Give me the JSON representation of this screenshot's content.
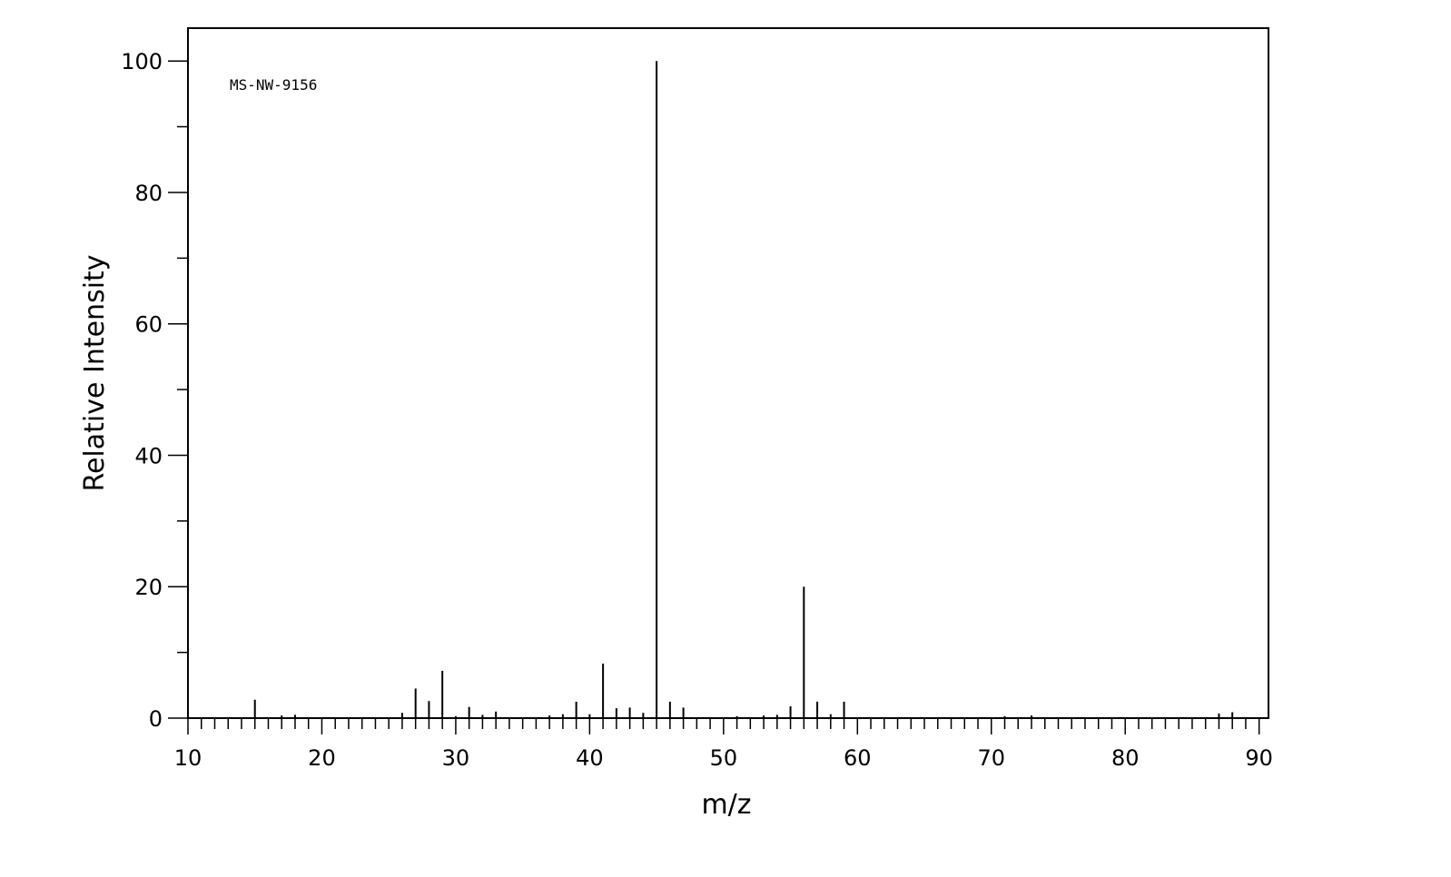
{
  "chart_data": {
    "type": "bar",
    "subtype": "mass-spectrum-stick",
    "title": "",
    "annotation": "MS-NW-9156",
    "xlabel": "m/z",
    "ylabel": "Relative Intensity",
    "xlim": [
      10,
      90.7
    ],
    "ylim": [
      0,
      105
    ],
    "x_ticks": [
      10,
      20,
      30,
      40,
      50,
      60,
      70,
      80,
      90
    ],
    "y_ticks": [
      0,
      20,
      40,
      60,
      80,
      100
    ],
    "grid": false,
    "legend": "none",
    "colors": {
      "line": "#000000",
      "background": "#ffffff"
    },
    "peaks": [
      {
        "mz": 15,
        "intensity": 2.8
      },
      {
        "mz": 17,
        "intensity": 0.4
      },
      {
        "mz": 18,
        "intensity": 0.5
      },
      {
        "mz": 26,
        "intensity": 0.8
      },
      {
        "mz": 27,
        "intensity": 4.5
      },
      {
        "mz": 28,
        "intensity": 2.6
      },
      {
        "mz": 29,
        "intensity": 7.2
      },
      {
        "mz": 30,
        "intensity": 0.3
      },
      {
        "mz": 31,
        "intensity": 1.7
      },
      {
        "mz": 32,
        "intensity": 0.5
      },
      {
        "mz": 33,
        "intensity": 1.0
      },
      {
        "mz": 37,
        "intensity": 0.4
      },
      {
        "mz": 38,
        "intensity": 0.6
      },
      {
        "mz": 39,
        "intensity": 2.5
      },
      {
        "mz": 40,
        "intensity": 0.6
      },
      {
        "mz": 41,
        "intensity": 8.3
      },
      {
        "mz": 42,
        "intensity": 1.5
      },
      {
        "mz": 43,
        "intensity": 1.6
      },
      {
        "mz": 44,
        "intensity": 0.8
      },
      {
        "mz": 45,
        "intensity": 100
      },
      {
        "mz": 46,
        "intensity": 2.5
      },
      {
        "mz": 47,
        "intensity": 1.6
      },
      {
        "mz": 51,
        "intensity": 0.3
      },
      {
        "mz": 53,
        "intensity": 0.4
      },
      {
        "mz": 54,
        "intensity": 0.5
      },
      {
        "mz": 55,
        "intensity": 1.8
      },
      {
        "mz": 56,
        "intensity": 20
      },
      {
        "mz": 57,
        "intensity": 2.5
      },
      {
        "mz": 58,
        "intensity": 0.6
      },
      {
        "mz": 59,
        "intensity": 2.5
      },
      {
        "mz": 71,
        "intensity": 0.3
      },
      {
        "mz": 73,
        "intensity": 0.4
      },
      {
        "mz": 87,
        "intensity": 0.7
      },
      {
        "mz": 88,
        "intensity": 0.9
      }
    ]
  }
}
